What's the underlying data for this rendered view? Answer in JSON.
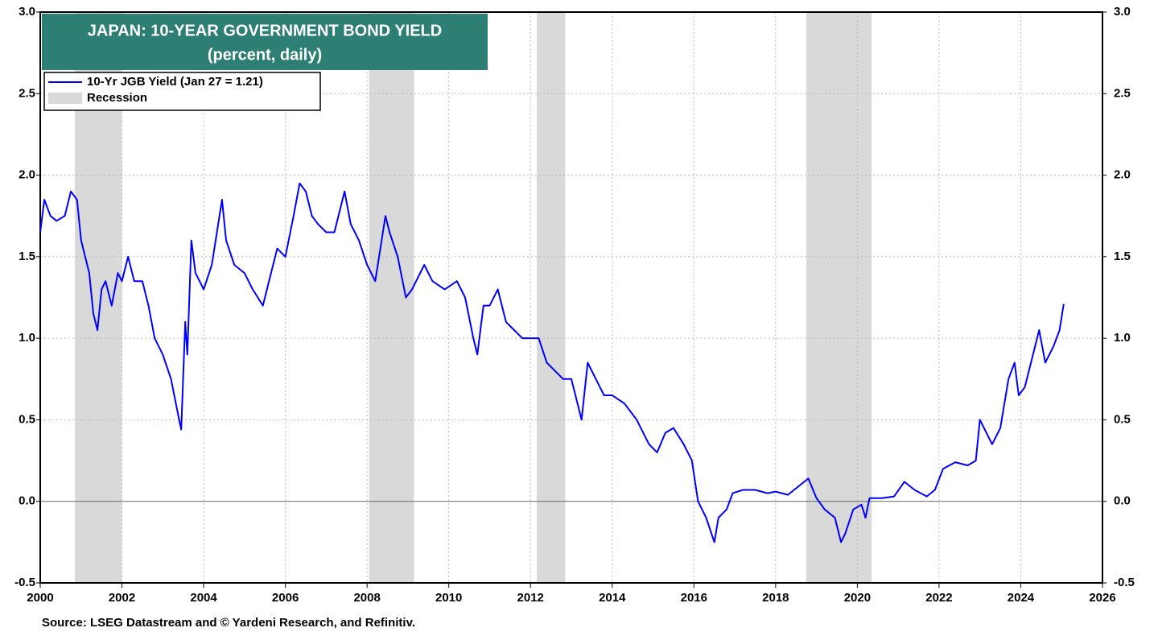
{
  "chart_data": {
    "type": "line",
    "title": "JAPAN: 10-YEAR GOVERNMENT BOND YIELD",
    "subtitle": "(percent, daily)",
    "source": "Source: LSEG Datastream and © Yardeni Research, and Refinitiv.",
    "recession_label": "Recession",
    "recession_color": "#d9d9d9",
    "recessions": [
      [
        2000.85,
        2002.0
      ],
      [
        2008.05,
        2009.15
      ],
      [
        2012.15,
        2012.85
      ],
      [
        2018.75,
        2020.35
      ]
    ],
    "xlim": [
      2000,
      2026
    ],
    "xticks": [
      2000,
      2002,
      2004,
      2006,
      2008,
      2010,
      2012,
      2014,
      2016,
      2018,
      2020,
      2022,
      2024,
      2026
    ],
    "ylim": [
      -0.5,
      3.0
    ],
    "yticks": [
      -0.5,
      {
        "value": 0,
        "label": "0.0"
      },
      0.5,
      {
        "value": 1,
        "label": "1.0"
      },
      1.5,
      {
        "value": 2,
        "label": "2.0"
      },
      2.5,
      {
        "value": 3,
        "label": "3.0"
      }
    ],
    "grid": true,
    "x": [
      2000.0,
      2000.1,
      2000.25,
      2000.4,
      2000.6,
      2000.75,
      2000.9,
      2001.0,
      2001.2,
      2001.3,
      2001.4,
      2001.5,
      2001.6,
      2001.75,
      2001.9,
      2002.0,
      2002.15,
      2002.3,
      2002.5,
      2002.65,
      2002.8,
      2003.0,
      2003.2,
      2003.4,
      2003.45,
      2003.55,
      2003.6,
      2003.7,
      2003.8,
      2004.0,
      2004.2,
      2004.45,
      2004.55,
      2004.75,
      2005.0,
      2005.2,
      2005.45,
      2005.6,
      2005.8,
      2006.0,
      2006.2,
      2006.35,
      2006.5,
      2006.65,
      2006.8,
      2007.0,
      2007.2,
      2007.45,
      2007.6,
      2007.8,
      2008.0,
      2008.2,
      2008.45,
      2008.55,
      2008.75,
      2008.95,
      2009.1,
      2009.4,
      2009.6,
      2009.9,
      2010.2,
      2010.4,
      2010.6,
      2010.7,
      2010.85,
      2011.0,
      2011.2,
      2011.4,
      2011.6,
      2011.8,
      2012.0,
      2012.2,
      2012.4,
      2012.6,
      2012.8,
      2013.0,
      2013.25,
      2013.4,
      2013.6,
      2013.8,
      2014.0,
      2014.3,
      2014.6,
      2014.9,
      2015.1,
      2015.3,
      2015.5,
      2015.75,
      2015.95,
      2016.1,
      2016.3,
      2016.5,
      2016.6,
      2016.8,
      2016.95,
      2017.2,
      2017.5,
      2017.8,
      2018.0,
      2018.3,
      2018.6,
      2018.8,
      2019.0,
      2019.2,
      2019.45,
      2019.6,
      2019.7,
      2019.9,
      2020.1,
      2020.2,
      2020.3,
      2020.6,
      2020.9,
      2021.15,
      2021.4,
      2021.7,
      2021.9,
      2022.1,
      2022.4,
      2022.7,
      2022.9,
      2023.0,
      2023.3,
      2023.5,
      2023.7,
      2023.85,
      2023.95,
      2024.1,
      2024.3,
      2024.45,
      2024.6,
      2024.8,
      2024.95,
      2025.05
    ],
    "series": [
      {
        "name": "10-Yr JGB Yield (Jan 27 = 1.21)",
        "color": "#0000ff",
        "values": [
          1.65,
          1.85,
          1.75,
          1.72,
          1.75,
          1.9,
          1.85,
          1.6,
          1.4,
          1.15,
          1.05,
          1.3,
          1.35,
          1.2,
          1.4,
          1.35,
          1.5,
          1.35,
          1.35,
          1.2,
          1.0,
          0.9,
          0.75,
          0.5,
          0.44,
          1.1,
          0.9,
          1.6,
          1.4,
          1.3,
          1.45,
          1.85,
          1.6,
          1.45,
          1.4,
          1.3,
          1.2,
          1.35,
          1.55,
          1.5,
          1.75,
          1.95,
          1.9,
          1.75,
          1.7,
          1.65,
          1.65,
          1.9,
          1.7,
          1.6,
          1.45,
          1.35,
          1.75,
          1.65,
          1.5,
          1.25,
          1.3,
          1.45,
          1.35,
          1.3,
          1.35,
          1.25,
          1.0,
          0.9,
          1.2,
          1.2,
          1.3,
          1.1,
          1.05,
          1.0,
          1.0,
          1.0,
          0.85,
          0.8,
          0.75,
          0.75,
          0.5,
          0.85,
          0.75,
          0.65,
          0.65,
          0.6,
          0.5,
          0.35,
          0.3,
          0.42,
          0.45,
          0.35,
          0.25,
          0.0,
          -0.1,
          -0.25,
          -0.1,
          -0.05,
          0.05,
          0.07,
          0.07,
          0.05,
          0.06,
          0.04,
          0.1,
          0.14,
          0.02,
          -0.05,
          -0.1,
          -0.25,
          -0.2,
          -0.05,
          -0.02,
          -0.1,
          0.02,
          0.02,
          0.03,
          0.12,
          0.07,
          0.03,
          0.07,
          0.2,
          0.24,
          0.22,
          0.25,
          0.5,
          0.35,
          0.45,
          0.75,
          0.85,
          0.65,
          0.7,
          0.9,
          1.05,
          0.85,
          0.95,
          1.05,
          1.21
        ]
      }
    ]
  }
}
